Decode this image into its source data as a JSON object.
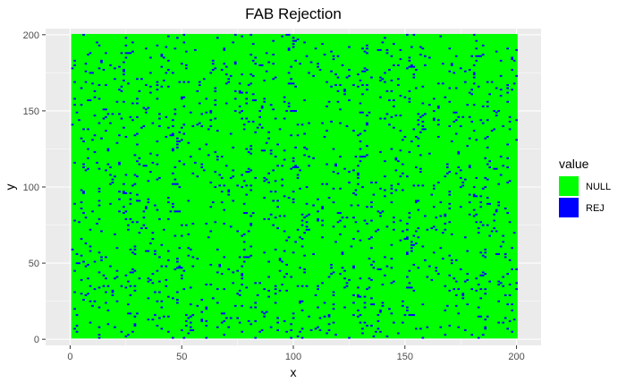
{
  "chart_data": {
    "type": "heatmap",
    "title": "FAB Rejection",
    "xlabel": "x",
    "ylabel": "y",
    "xlim": [
      -11,
      211
    ],
    "ylim": [
      -4,
      204
    ],
    "x_ticks": [
      0,
      50,
      100,
      150,
      200
    ],
    "y_ticks": [
      0,
      50,
      100,
      150,
      200
    ],
    "grid": true,
    "grid_range": {
      "x": [
        1,
        200
      ],
      "y": [
        1,
        200
      ]
    },
    "background_fill": "NULL",
    "rej_rate": 0.035,
    "legend": {
      "title": "value",
      "placement": "right",
      "entries": [
        {
          "label": "NULL",
          "color": "#00ff00"
        },
        {
          "label": "REJ",
          "color": "#0000ff"
        }
      ]
    },
    "panel_background": "#ebebeb",
    "grid_color": "#ffffff"
  }
}
